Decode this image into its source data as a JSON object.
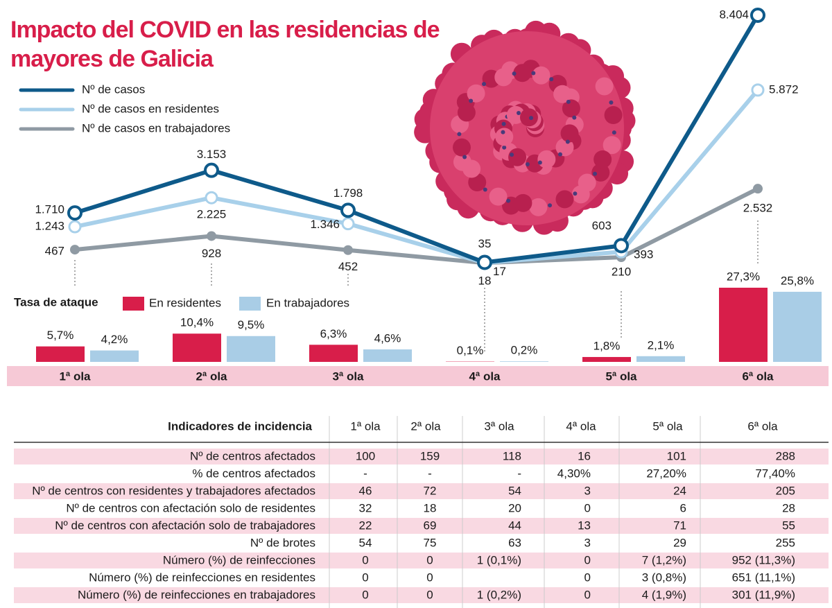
{
  "title": "Impacto del COVID en las residencias de mayores de Galicia",
  "chart_data": [
    {
      "type": "line",
      "series": [
        {
          "name": "Nº de casos",
          "color": "#0e5a8a",
          "values": [
            1710,
            3153,
            1798,
            35,
            603,
            8404
          ],
          "value_labels": [
            "1.710",
            "3.153",
            "1.798",
            "35",
            "603",
            "8.404"
          ]
        },
        {
          "name": "Nº de casos en residentes",
          "color": "#a8d0ea",
          "values": [
            1243,
            2225,
            1346,
            18,
            393,
            5872
          ],
          "value_labels": [
            "1.243",
            "2.225",
            "1.346",
            "18",
            "393",
            "5.872"
          ]
        },
        {
          "name": "Nº de casos en trabajadores",
          "color": "#8f9aa3",
          "values": [
            467,
            928,
            452,
            17,
            210,
            2532
          ],
          "value_labels": [
            "467",
            "928",
            "452",
            "17",
            "210",
            "2.532"
          ]
        }
      ]
    },
    {
      "type": "bar",
      "title": "Tasa de ataque",
      "categories": [
        "1ª ola",
        "2ª ola",
        "3ª ola",
        "4ª ola",
        "5ª ola",
        "6ª ola"
      ],
      "series": [
        {
          "name": "En residentes",
          "color": "#d81e4a",
          "values": [
            5.7,
            10.4,
            6.3,
            0.1,
            1.8,
            27.3
          ],
          "value_labels": [
            "5,7%",
            "10,4%",
            "6,3%",
            "0,1%",
            "1,8%",
            "27,3%"
          ]
        },
        {
          "name": "En trabajadores",
          "color": "#a9cde6",
          "values": [
            4.2,
            9.5,
            4.6,
            0.2,
            2.1,
            25.8
          ],
          "value_labels": [
            "4,2%",
            "9,5%",
            "4,6%",
            "0,2%",
            "2,1%",
            "25,8%"
          ]
        }
      ]
    }
  ],
  "table": {
    "header": [
      "Indicadores de incidencia",
      "1ª ola",
      "2ª ola",
      "3ª ola",
      "4ª ola",
      "5ª ola",
      "6ª ola"
    ],
    "rows": [
      [
        "Nº de centros afectados",
        "100",
        "159",
        "118",
        "16",
        "101",
        "288"
      ],
      [
        "% de centros afectados",
        "-",
        "-",
        "-",
        "4,30%",
        "27,20%",
        "77,40%"
      ],
      [
        "Nº de centros con residentes y trabajadores afectados",
        "46",
        "72",
        "54",
        "3",
        "24",
        "205"
      ],
      [
        "Nº de centros con afectación solo de residentes",
        "32",
        "18",
        "20",
        "0",
        "6",
        "28"
      ],
      [
        "Nº de centros con afectación solo de trabajadores",
        "22",
        "69",
        "44",
        "13",
        "71",
        "55"
      ],
      [
        "Nº de brotes",
        "54",
        "75",
        "63",
        "3",
        "29",
        "255"
      ],
      [
        "Número (%) de reinfecciones",
        "0",
        "0",
        "1 (0,1%)",
        "0",
        "7 (1,2%)",
        "952 (11,3%)"
      ],
      [
        "Número (%) de reinfecciones en residentes",
        "0",
        "0",
        null,
        "0",
        "3 (0,8%)",
        "651 (11,1%)"
      ],
      [
        "Número (%) de reinfecciones en trabajadores",
        "0",
        "0",
        "1 (0,2%)",
        "0",
        "4 (1,9%)",
        "301 (11,9%)"
      ]
    ]
  }
}
